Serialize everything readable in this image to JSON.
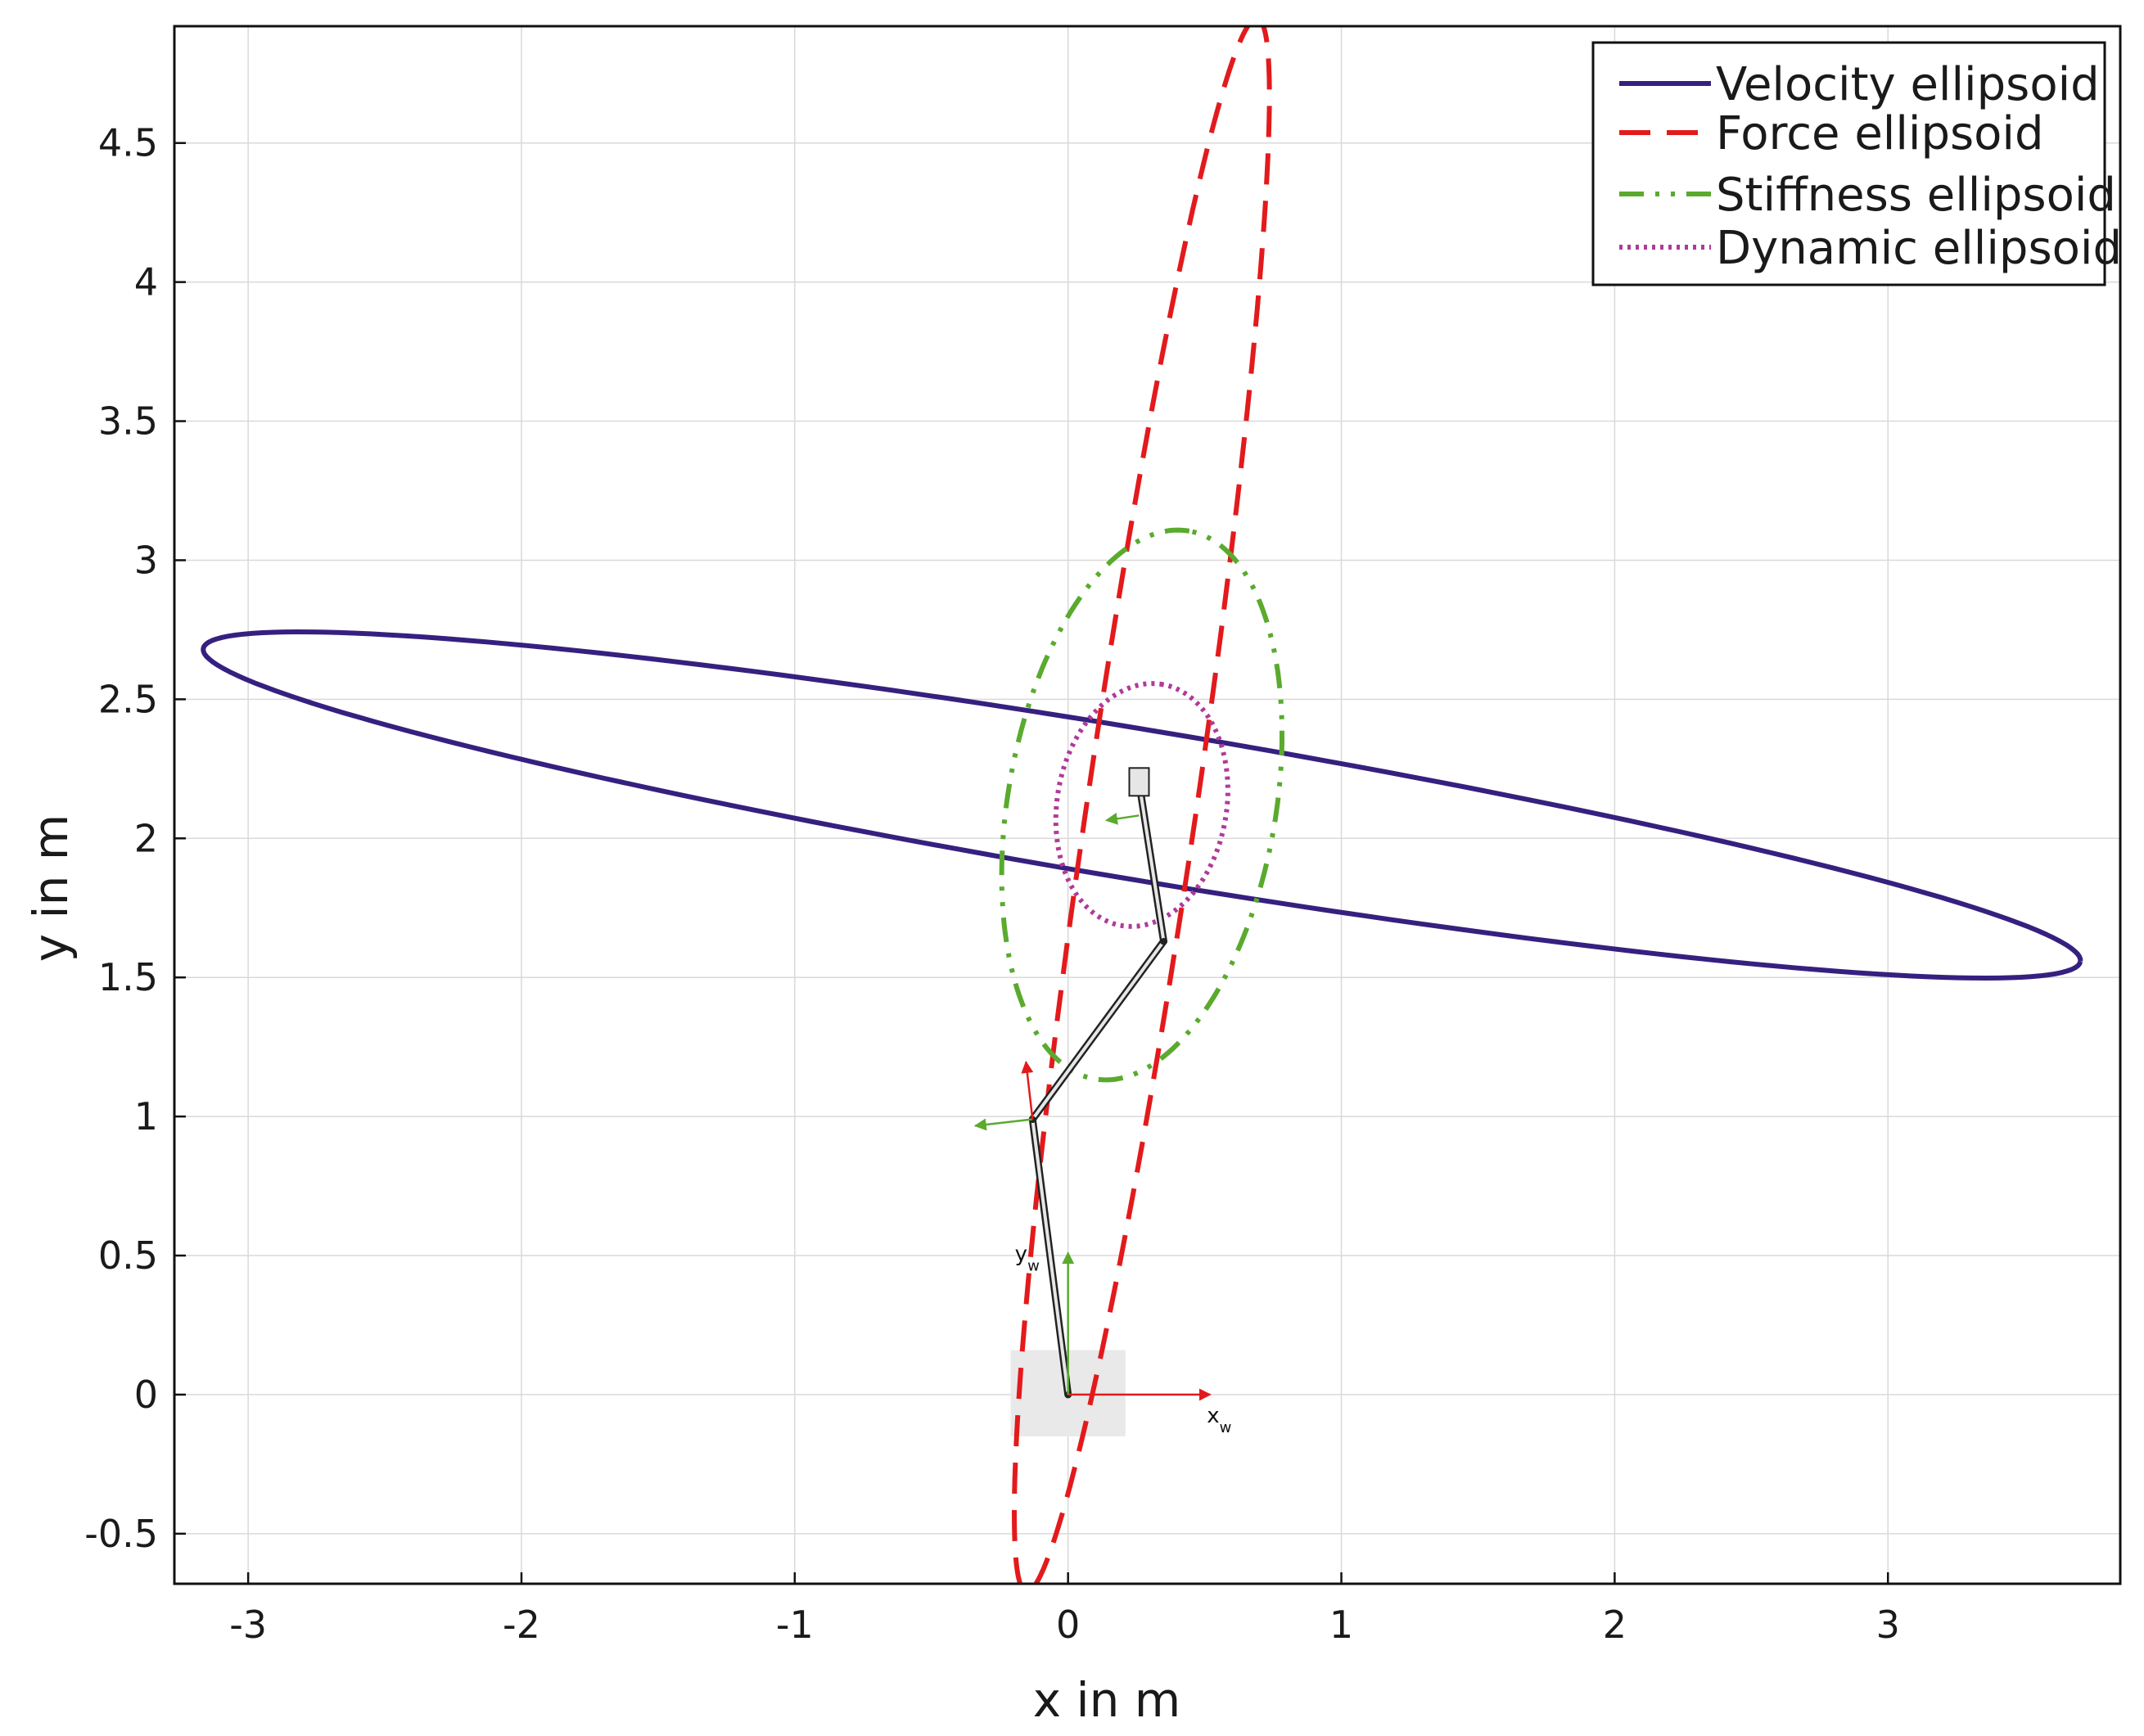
{
  "chart_data": {
    "type": "line",
    "xlabel": "x in m",
    "ylabel": "y in m",
    "xlim": [
      -3.27,
      3.85
    ],
    "ylim": [
      -0.68,
      4.92
    ],
    "grid": true,
    "xticks": [
      -3,
      -2,
      -1,
      0,
      1,
      2,
      3
    ],
    "yticks": [
      -0.5,
      0,
      0.5,
      1,
      1.5,
      2,
      2.5,
      3,
      3.5,
      4,
      4.5
    ],
    "legend_position": "top-right",
    "series": [
      {
        "name": "Velocity ellipsoid",
        "style": "solid",
        "color": "#36207f",
        "center": [
          0.27,
          2.12
        ],
        "semi_major": 3.48,
        "semi_minor": 0.27,
        "angle_deg": -9.3
      },
      {
        "name": "Force ellipsoid",
        "style": "dashed",
        "color": "#e31a1c",
        "center": [
          0.27,
          2.12
        ],
        "semi_major": 2.86,
        "semi_minor": 0.2,
        "angle_deg": 81.5
      },
      {
        "name": "Stiffness ellipsoid",
        "style": "dashdot",
        "color": "#5aaa2e",
        "center": [
          0.27,
          2.12
        ],
        "semi_major": 1.0,
        "semi_minor": 0.49,
        "angle_deg": 80.0
      },
      {
        "name": "Dynamic ellipsoid",
        "style": "dotted",
        "color": "#b03a9a",
        "center": [
          0.27,
          2.12
        ],
        "semi_major": 0.44,
        "semi_minor": 0.31,
        "angle_deg": 80.0
      }
    ],
    "robot": {
      "joints": [
        [
          0,
          0
        ],
        [
          -0.13,
          0.99
        ],
        [
          0.35,
          1.63
        ],
        [
          0.26,
          2.2
        ]
      ],
      "base_box": {
        "x": [
          -0.21,
          0.21
        ],
        "y": [
          -0.15,
          0.16
        ]
      },
      "world_frame": {
        "x_axis": {
          "label": "x",
          "subscript": "w",
          "end": [
            0.52,
            0
          ],
          "color": "#e31a1c"
        },
        "y_axis": {
          "label": "y",
          "subscript": "w",
          "end": [
            0,
            0.51
          ],
          "color": "#5aaa2e"
        }
      }
    }
  }
}
